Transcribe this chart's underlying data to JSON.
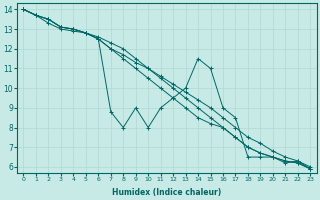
{
  "xlabel": "Humidex (Indice chaleur)",
  "bg_color": "#c8eae6",
  "line_color": "#006666",
  "grid_color": "#b0d8d4",
  "xlim": [
    -0.5,
    23.5
  ],
  "ylim": [
    5.7,
    14.3
  ],
  "xticks": [
    0,
    1,
    2,
    3,
    4,
    5,
    6,
    7,
    8,
    9,
    10,
    11,
    12,
    13,
    14,
    15,
    16,
    17,
    18,
    19,
    20,
    21,
    22,
    23
  ],
  "yticks": [
    6,
    7,
    8,
    9,
    10,
    11,
    12,
    13,
    14
  ],
  "series": [
    [
      14.0,
      13.7,
      13.5,
      13.1,
      13.0,
      12.8,
      12.5,
      12.0,
      11.7,
      11.3,
      11.0,
      10.6,
      10.2,
      9.8,
      9.4,
      9.0,
      8.5,
      8.0,
      7.5,
      7.2,
      6.8,
      6.5,
      6.3,
      6.0
    ],
    [
      14.0,
      13.7,
      13.5,
      13.1,
      13.0,
      12.8,
      12.5,
      12.0,
      11.5,
      11.0,
      10.5,
      10.0,
      9.5,
      9.0,
      8.5,
      8.2,
      8.0,
      7.5,
      7.0,
      6.7,
      6.5,
      6.3,
      6.2,
      5.9
    ],
    [
      14.0,
      13.7,
      13.5,
      13.1,
      13.0,
      12.8,
      12.6,
      12.3,
      12.0,
      11.5,
      11.0,
      10.5,
      10.0,
      9.5,
      9.0,
      8.5,
      8.0,
      7.5,
      7.0,
      6.7,
      6.5,
      6.3,
      6.2,
      5.9
    ],
    [
      14.0,
      13.7,
      13.3,
      13.0,
      12.9,
      12.8,
      12.5,
      8.8,
      8.0,
      9.0,
      8.0,
      9.0,
      9.5,
      10.0,
      11.5,
      11.0,
      9.0,
      8.5,
      6.5,
      6.5,
      6.5,
      6.2,
      6.3,
      5.9
    ]
  ]
}
